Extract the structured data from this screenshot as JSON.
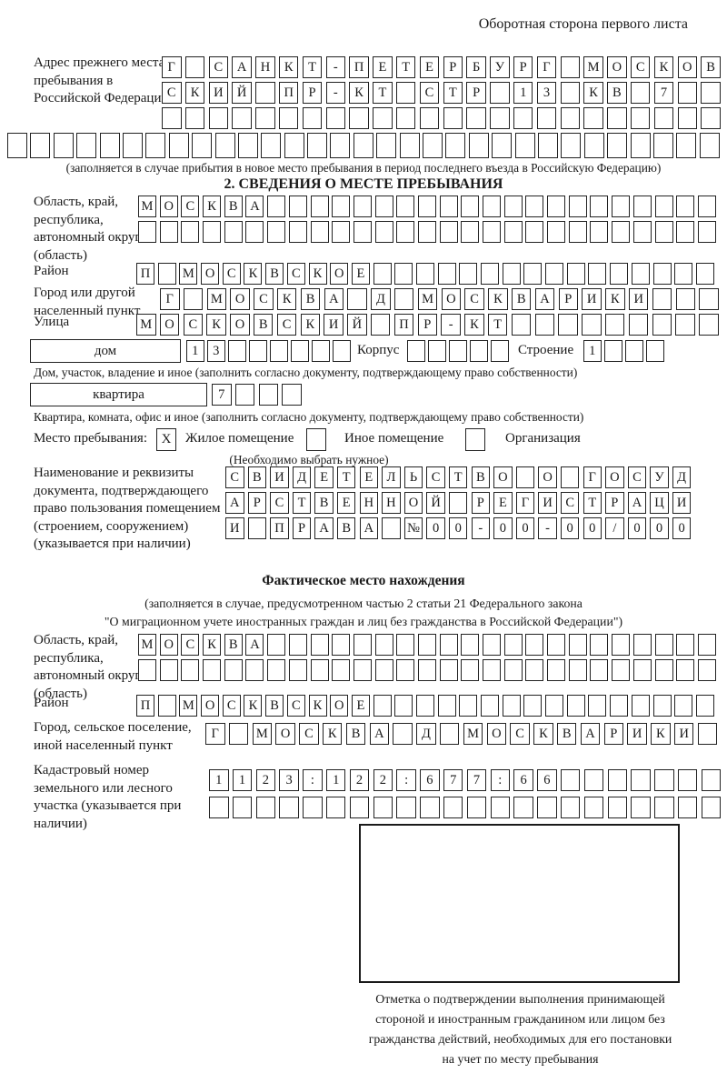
{
  "header": {
    "title": "Оборотная сторона первого листа"
  },
  "prev_address": {
    "label": "Адрес прежнего места пребывания в Российской Федерации",
    "line1": {
      "len": 24,
      "text": "Г САНКТ-ПЕТЕРБУРГ МОСКОВ"
    },
    "line2": {
      "len": 24,
      "text": "СКИЙ ПР-КТ СТР 13 КВ 7"
    },
    "line3": {
      "len": 24,
      "text": ""
    },
    "line4": {
      "len": 31,
      "text": ""
    },
    "note": "(заполняется в случае прибытия в новое место пребывания в период последнего въезда в Российскую Федерацию)"
  },
  "section2": {
    "title": "2. СВЕДЕНИЯ О МЕСТЕ ПРЕБЫВАНИЯ",
    "region": {
      "label": "Область, край, республика, автономный округ (область)",
      "line1": {
        "len": 27,
        "text": "МОСКВА"
      },
      "line2": {
        "len": 27,
        "text": ""
      }
    },
    "district": {
      "label": "Район",
      "line1": {
        "len": 27,
        "text": "П МОСКВСКОЕ"
      }
    },
    "city": {
      "label": "Город или другой населенный пункт",
      "line1": {
        "len": 24,
        "text": "Г МОСКВА Д МОСКВАРИКИ"
      }
    },
    "street": {
      "label": "Улица",
      "line1": {
        "len": 25,
        "text": "МОСКОВСКИЙ ПР-КТ"
      }
    },
    "house": {
      "box_label": "дом",
      "number": {
        "len": 8,
        "text": "13"
      },
      "korpus_label": "Корпус",
      "korpus": {
        "len": 5,
        "text": ""
      },
      "stroenie_label": "Строение",
      "stroenie": {
        "len": 4,
        "text": "1"
      },
      "note": "Дом, участок, владение и иное (заполнить согласно документу, подтверждающему право собственности)"
    },
    "apartment": {
      "box_label": "квартира",
      "number": {
        "len": 4,
        "text": "7"
      },
      "note": "Квартира, комната, офис и иное (заполнить согласно документу, подтверждающему право собственности)"
    },
    "stay_type": {
      "label": "Место пребывания:",
      "options": [
        {
          "mark": "X",
          "label": "Жилое помещение"
        },
        {
          "mark": "",
          "label": "Иное помещение"
        },
        {
          "mark": "",
          "label": "Организация"
        }
      ],
      "note": "(Необходимо выбрать нужное)"
    },
    "document": {
      "label": "Наименование и реквизиты документа, подтверждающего право пользования помещением (строением, сооружением) (указывается при наличии)",
      "line1": {
        "len": 21,
        "text": "СВИДЕТЕЛЬСТВО О ГОСУД"
      },
      "line2": {
        "len": 21,
        "text": "АРСТВЕННОЙ РЕГИСТРАЦИ"
      },
      "line3": {
        "len": 21,
        "text": "И ПРАВА №00-00-00/000"
      }
    }
  },
  "actual_location": {
    "title": "Фактическое место нахождения",
    "note_line1": "(заполняется в случае, предусмотренном частью 2 статьи 21 Федерального закона",
    "note_line2": "\"О миграционном учете иностранных граждан и лиц без гражданства в Российской Федерации\")",
    "region": {
      "label": "Область, край, республика, автономный округ (область)",
      "line1": {
        "len": 27,
        "text": "МОСКВА"
      },
      "line2": {
        "len": 27,
        "text": ""
      }
    },
    "district": {
      "label": "Район",
      "line1": {
        "len": 27,
        "text": "П МОСКВСКОЕ"
      }
    },
    "city": {
      "label": "Город, сельское поселение, иной населенный пункт",
      "line1": {
        "len": 22,
        "text": "Г МОСКВА Д МОСКВАРИКИ"
      }
    },
    "cadastre": {
      "label": "Кадастровый номер земельного или лесного участка (указывается при наличии)",
      "line1": {
        "len": 22,
        "text": "1123:122:677:66"
      },
      "line2": {
        "len": 22,
        "text": ""
      }
    },
    "stamp_note_lines": [
      "Отметка о подтверждении выполнения принимающей",
      "стороной и иностранным гражданином или лицом без",
      "гражданства действий, необходимых для его постановки",
      "на учет по месту пребывания"
    ]
  }
}
